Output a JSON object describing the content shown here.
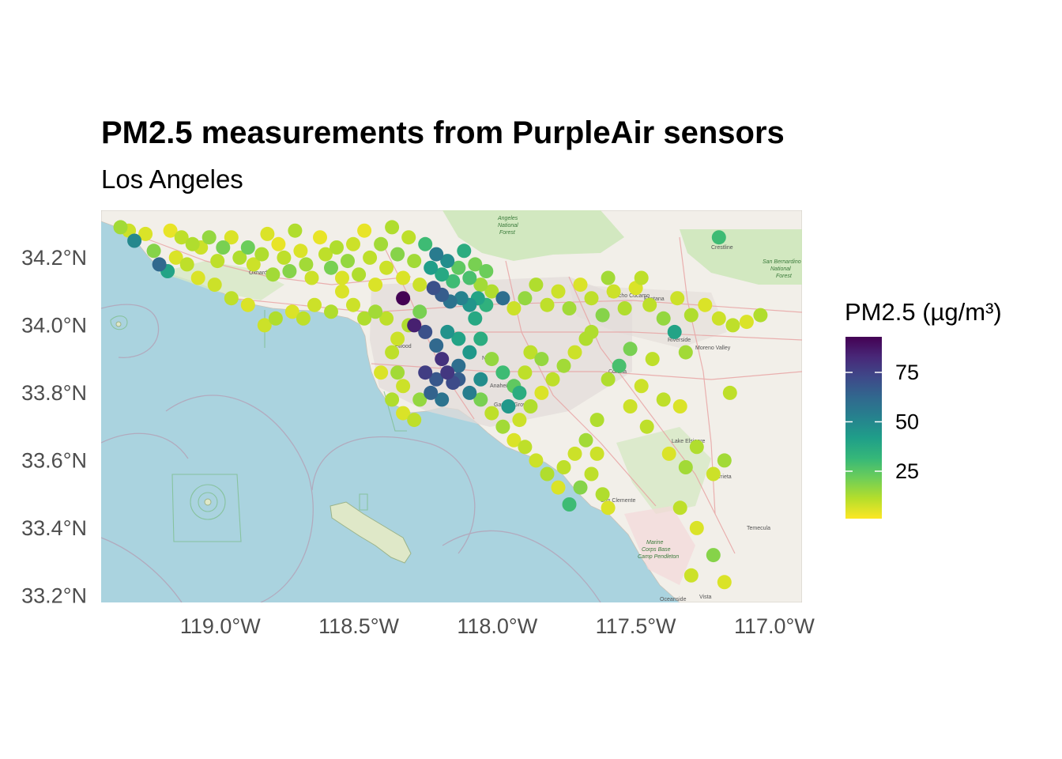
{
  "title": "PM2.5 measurements from PurpleAir sensors",
  "subtitle": "Los Angeles",
  "legend": {
    "title": "PM2.5 (µg/m³)",
    "ticks": [
      {
        "value": 75,
        "label": "75"
      },
      {
        "value": 50,
        "label": "50"
      },
      {
        "value": 25,
        "label": "25"
      }
    ],
    "min": 1,
    "max": 93,
    "palette": [
      "#fde725",
      "#b5de2b",
      "#6ece58",
      "#35b779",
      "#1f9e89",
      "#26828e",
      "#31688e",
      "#3e4989",
      "#482878",
      "#440154"
    ]
  },
  "chart_data": {
    "type": "scatter",
    "title": "PM2.5 measurements from PurpleAir sensors",
    "subtitle": "Los Angeles",
    "xlim": [
      -119.43,
      -116.9
    ],
    "ylim": [
      33.18,
      34.34
    ],
    "x_ticks": [
      {
        "value": -119.0,
        "label": "119.0°W"
      },
      {
        "value": -118.5,
        "label": "118.5°W"
      },
      {
        "value": -118.0,
        "label": "118.0°W"
      },
      {
        "value": -117.5,
        "label": "117.5°W"
      },
      {
        "value": -117.0,
        "label": "117.0°W"
      }
    ],
    "y_ticks": [
      {
        "value": 34.2,
        "label": "34.2°N"
      },
      {
        "value": 34.0,
        "label": "34.0°N"
      },
      {
        "value": 33.8,
        "label": "33.8°N"
      },
      {
        "value": 33.6,
        "label": "33.6°N"
      },
      {
        "value": 33.4,
        "label": "33.4°N"
      },
      {
        "value": 33.2,
        "label": "33.2°N"
      }
    ],
    "color_scale": "viridis (reversed)",
    "points": [
      [
        -119.36,
        34.29,
        14
      ],
      [
        -119.33,
        34.28,
        8
      ],
      [
        -119.31,
        34.25,
        50
      ],
      [
        -119.27,
        34.27,
        6
      ],
      [
        -119.24,
        34.22,
        18
      ],
      [
        -119.22,
        34.18,
        62
      ],
      [
        -119.19,
        34.16,
        40
      ],
      [
        -119.18,
        34.28,
        4
      ],
      [
        -119.14,
        34.26,
        10
      ],
      [
        -119.1,
        34.24,
        12
      ],
      [
        -119.07,
        34.23,
        8
      ],
      [
        -119.04,
        34.26,
        16
      ],
      [
        -119.01,
        34.19,
        10
      ],
      [
        -118.99,
        34.23,
        20
      ],
      [
        -118.96,
        34.26,
        6
      ],
      [
        -118.93,
        34.2,
        12
      ],
      [
        -118.9,
        34.23,
        22
      ],
      [
        -118.88,
        34.18,
        8
      ],
      [
        -118.85,
        34.21,
        12
      ],
      [
        -118.83,
        34.27,
        6
      ],
      [
        -118.81,
        34.15,
        14
      ],
      [
        -118.79,
        34.24,
        4
      ],
      [
        -118.77,
        34.2,
        10
      ],
      [
        -118.75,
        34.16,
        18
      ],
      [
        -118.73,
        34.28,
        12
      ],
      [
        -118.71,
        34.22,
        6
      ],
      [
        -118.69,
        34.18,
        14
      ],
      [
        -118.67,
        34.14,
        8
      ],
      [
        -118.64,
        34.26,
        4
      ],
      [
        -118.62,
        34.21,
        10
      ],
      [
        -118.6,
        34.17,
        20
      ],
      [
        -118.58,
        34.23,
        12
      ],
      [
        -118.56,
        34.14,
        6
      ],
      [
        -118.54,
        34.19,
        16
      ],
      [
        -118.52,
        34.24,
        8
      ],
      [
        -118.5,
        34.15,
        12
      ],
      [
        -118.48,
        34.28,
        4
      ],
      [
        -118.46,
        34.2,
        10
      ],
      [
        -118.44,
        34.12,
        6
      ],
      [
        -118.42,
        34.24,
        14
      ],
      [
        -118.4,
        34.17,
        8
      ],
      [
        -118.38,
        34.29,
        12
      ],
      [
        -118.36,
        34.21,
        18
      ],
      [
        -118.34,
        34.14,
        6
      ],
      [
        -118.32,
        34.26,
        10
      ],
      [
        -118.3,
        34.19,
        14
      ],
      [
        -118.28,
        34.12,
        8
      ],
      [
        -118.26,
        34.24,
        30
      ],
      [
        -118.24,
        34.17,
        42
      ],
      [
        -118.22,
        34.21,
        55
      ],
      [
        -118.2,
        34.15,
        38
      ],
      [
        -118.18,
        34.19,
        48
      ],
      [
        -118.16,
        34.13,
        30
      ],
      [
        -118.14,
        34.17,
        24
      ],
      [
        -118.12,
        34.22,
        36
      ],
      [
        -118.1,
        34.14,
        28
      ],
      [
        -118.08,
        34.18,
        20
      ],
      [
        -118.06,
        34.12,
        14
      ],
      [
        -118.04,
        34.16,
        22
      ],
      [
        -118.02,
        34.1,
        12
      ],
      [
        -118.23,
        34.11,
        70
      ],
      [
        -118.2,
        34.09,
        66
      ],
      [
        -118.17,
        34.07,
        58
      ],
      [
        -118.13,
        34.08,
        52
      ],
      [
        -118.1,
        34.06,
        45
      ],
      [
        -118.07,
        34.08,
        40
      ],
      [
        -118.04,
        34.06,
        34
      ],
      [
        -117.98,
        34.08,
        60
      ],
      [
        -117.94,
        34.05,
        8
      ],
      [
        -117.9,
        34.08,
        16
      ],
      [
        -117.86,
        34.12,
        12
      ],
      [
        -117.82,
        34.06,
        10
      ],
      [
        -117.78,
        34.1,
        8
      ],
      [
        -117.74,
        34.05,
        14
      ],
      [
        -117.7,
        34.12,
        6
      ],
      [
        -117.66,
        34.08,
        10
      ],
      [
        -117.62,
        34.03,
        18
      ],
      [
        -117.58,
        34.1,
        8
      ],
      [
        -117.54,
        34.05,
        12
      ],
      [
        -117.5,
        34.11,
        6
      ],
      [
        -117.45,
        34.06,
        10
      ],
      [
        -117.4,
        34.02,
        16
      ],
      [
        -117.35,
        34.08,
        8
      ],
      [
        -117.3,
        34.03,
        12
      ],
      [
        -117.25,
        34.06,
        6
      ],
      [
        -117.2,
        34.02,
        8
      ],
      [
        -117.15,
        34.0,
        10
      ],
      [
        -117.1,
        34.01,
        6
      ],
      [
        -117.05,
        34.03,
        12
      ],
      [
        -117.6,
        34.14,
        14
      ],
      [
        -117.48,
        34.14,
        10
      ],
      [
        -117.2,
        34.26,
        30
      ],
      [
        -117.36,
        33.98,
        40
      ],
      [
        -117.52,
        33.93,
        20
      ],
      [
        -117.44,
        33.9,
        10
      ],
      [
        -117.32,
        33.92,
        14
      ],
      [
        -117.56,
        33.88,
        28
      ],
      [
        -117.6,
        33.84,
        12
      ],
      [
        -117.48,
        33.82,
        8
      ],
      [
        -117.4,
        33.78,
        10
      ],
      [
        -117.34,
        33.76,
        6
      ],
      [
        -117.28,
        33.64,
        12
      ],
      [
        -117.22,
        33.56,
        8
      ],
      [
        -117.16,
        33.8,
        10
      ],
      [
        -117.18,
        33.6,
        14
      ],
      [
        -117.28,
        33.4,
        6
      ],
      [
        -117.22,
        33.32,
        18
      ],
      [
        -117.3,
        33.26,
        8
      ],
      [
        -117.18,
        33.24,
        6
      ],
      [
        -117.34,
        33.46,
        10
      ],
      [
        -117.64,
        33.72,
        12
      ],
      [
        -117.68,
        33.66,
        14
      ],
      [
        -117.72,
        33.62,
        8
      ],
      [
        -117.76,
        33.58,
        10
      ],
      [
        -117.7,
        33.52,
        18
      ],
      [
        -117.74,
        33.47,
        30
      ],
      [
        -117.78,
        33.52,
        6
      ],
      [
        -117.82,
        33.56,
        12
      ],
      [
        -117.86,
        33.6,
        8
      ],
      [
        -117.9,
        33.64,
        10
      ],
      [
        -117.94,
        33.66,
        6
      ],
      [
        -117.98,
        33.7,
        14
      ],
      [
        -118.02,
        33.74,
        10
      ],
      [
        -118.06,
        33.78,
        20
      ],
      [
        -117.92,
        33.72,
        8
      ],
      [
        -117.88,
        33.76,
        12
      ],
      [
        -117.84,
        33.8,
        6
      ],
      [
        -117.8,
        33.84,
        10
      ],
      [
        -117.76,
        33.88,
        14
      ],
      [
        -117.72,
        33.92,
        8
      ],
      [
        -117.68,
        33.96,
        12
      ],
      [
        -117.84,
        33.9,
        16
      ],
      [
        -117.9,
        33.86,
        10
      ],
      [
        -117.94,
        33.82,
        24
      ],
      [
        -117.98,
        33.86,
        30
      ],
      [
        -118.02,
        33.9,
        16
      ],
      [
        -118.34,
        34.08,
        93
      ],
      [
        -118.3,
        34.0,
        85
      ],
      [
        -118.26,
        33.98,
        70
      ],
      [
        -118.22,
        33.94,
        62
      ],
      [
        -118.2,
        33.9,
        80
      ],
      [
        -118.18,
        33.86,
        78
      ],
      [
        -118.16,
        33.83,
        72
      ],
      [
        -118.22,
        33.84,
        68
      ],
      [
        -118.26,
        33.86,
        76
      ],
      [
        -118.24,
        33.8,
        64
      ],
      [
        -118.2,
        33.78,
        58
      ],
      [
        -118.14,
        33.84,
        66
      ],
      [
        -118.1,
        33.8,
        54
      ],
      [
        -118.06,
        33.84,
        48
      ],
      [
        -118.14,
        33.88,
        60
      ],
      [
        -118.1,
        33.92,
        44
      ],
      [
        -118.06,
        33.96,
        36
      ],
      [
        -118.14,
        33.96,
        40
      ],
      [
        -118.18,
        33.98,
        46
      ],
      [
        -118.08,
        34.02,
        38
      ],
      [
        -118.28,
        34.04,
        20
      ],
      [
        -118.32,
        34.0,
        12
      ],
      [
        -118.36,
        33.96,
        8
      ],
      [
        -118.38,
        33.92,
        10
      ],
      [
        -118.36,
        33.86,
        14
      ],
      [
        -118.34,
        33.82,
        8
      ],
      [
        -118.38,
        33.78,
        12
      ],
      [
        -118.34,
        33.74,
        6
      ],
      [
        -118.3,
        33.72,
        10
      ],
      [
        -118.28,
        33.78,
        16
      ],
      [
        -118.42,
        33.86,
        6
      ],
      [
        -118.4,
        34.02,
        10
      ],
      [
        -118.44,
        34.04,
        14
      ],
      [
        -118.48,
        34.02,
        12
      ],
      [
        -118.52,
        34.06,
        8
      ],
      [
        -118.56,
        34.1,
        6
      ],
      [
        -118.6,
        34.04,
        12
      ],
      [
        -118.66,
        34.06,
        8
      ],
      [
        -118.7,
        34.02,
        10
      ],
      [
        -118.74,
        34.04,
        6
      ],
      [
        -118.8,
        34.02,
        12
      ],
      [
        -118.84,
        34.0,
        8
      ],
      [
        -118.9,
        34.06,
        6
      ],
      [
        -118.96,
        34.08,
        10
      ],
      [
        -119.02,
        34.12,
        8
      ],
      [
        -119.08,
        34.14,
        6
      ],
      [
        -119.12,
        34.18,
        10
      ],
      [
        -119.16,
        34.2,
        6
      ],
      [
        -117.96,
        33.76,
        44
      ],
      [
        -117.92,
        33.8,
        36
      ],
      [
        -117.88,
        33.92,
        10
      ],
      [
        -117.66,
        33.98,
        12
      ],
      [
        -117.52,
        33.76,
        8
      ],
      [
        -117.46,
        33.7,
        10
      ],
      [
        -117.38,
        33.62,
        6
      ],
      [
        -117.32,
        33.58,
        14
      ],
      [
        -117.6,
        33.46,
        6
      ],
      [
        -117.62,
        33.5,
        12
      ],
      [
        -117.66,
        33.56,
        10
      ],
      [
        -117.64,
        33.62,
        8
      ]
    ]
  }
}
